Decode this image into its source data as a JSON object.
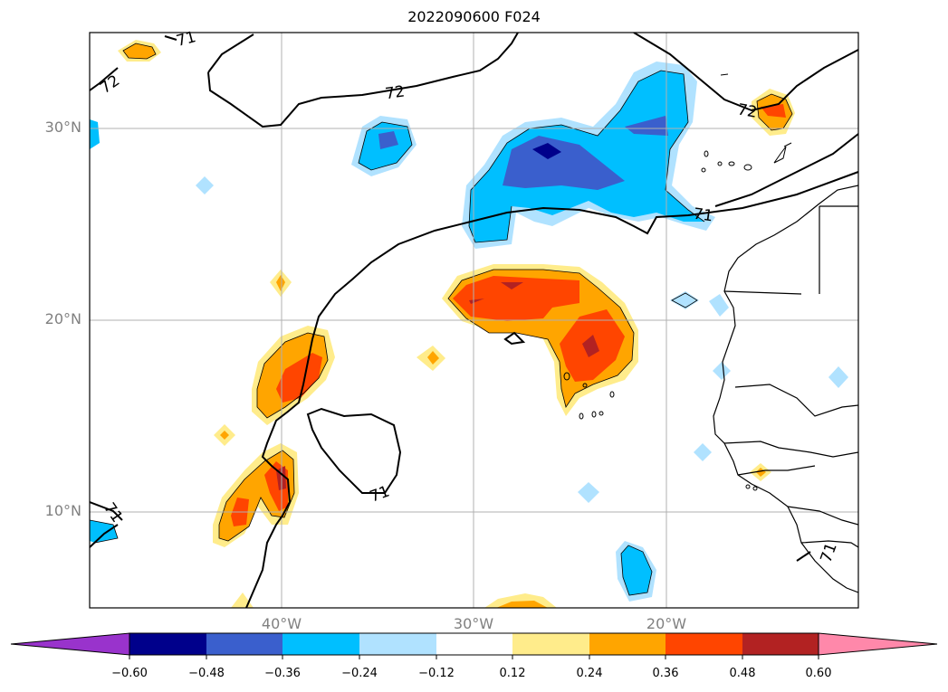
{
  "title": "2022090600 F024",
  "map": {
    "lat_ticks": [
      "30°N",
      "20°N",
      "10°N"
    ],
    "lon_ticks": [
      "40°W",
      "30°W",
      "20°W"
    ],
    "contour_labels": [
      "71",
      "72",
      "72",
      "72",
      "71",
      "71",
      "71",
      "71"
    ]
  },
  "colorbar": {
    "ticks": [
      "−0.60",
      "−0.48",
      "−0.36",
      "−0.24",
      "−0.12",
      "0.12",
      "0.24",
      "0.36",
      "0.48",
      "0.60"
    ],
    "colors": [
      "#9933cc",
      "#00008b",
      "#3a5fcd",
      "#00bfff",
      "#b0e2ff",
      "#ffffff",
      "#ffec8b",
      "#ffa500",
      "#ff4500",
      "#b22222",
      "#ff88aa"
    ]
  }
}
